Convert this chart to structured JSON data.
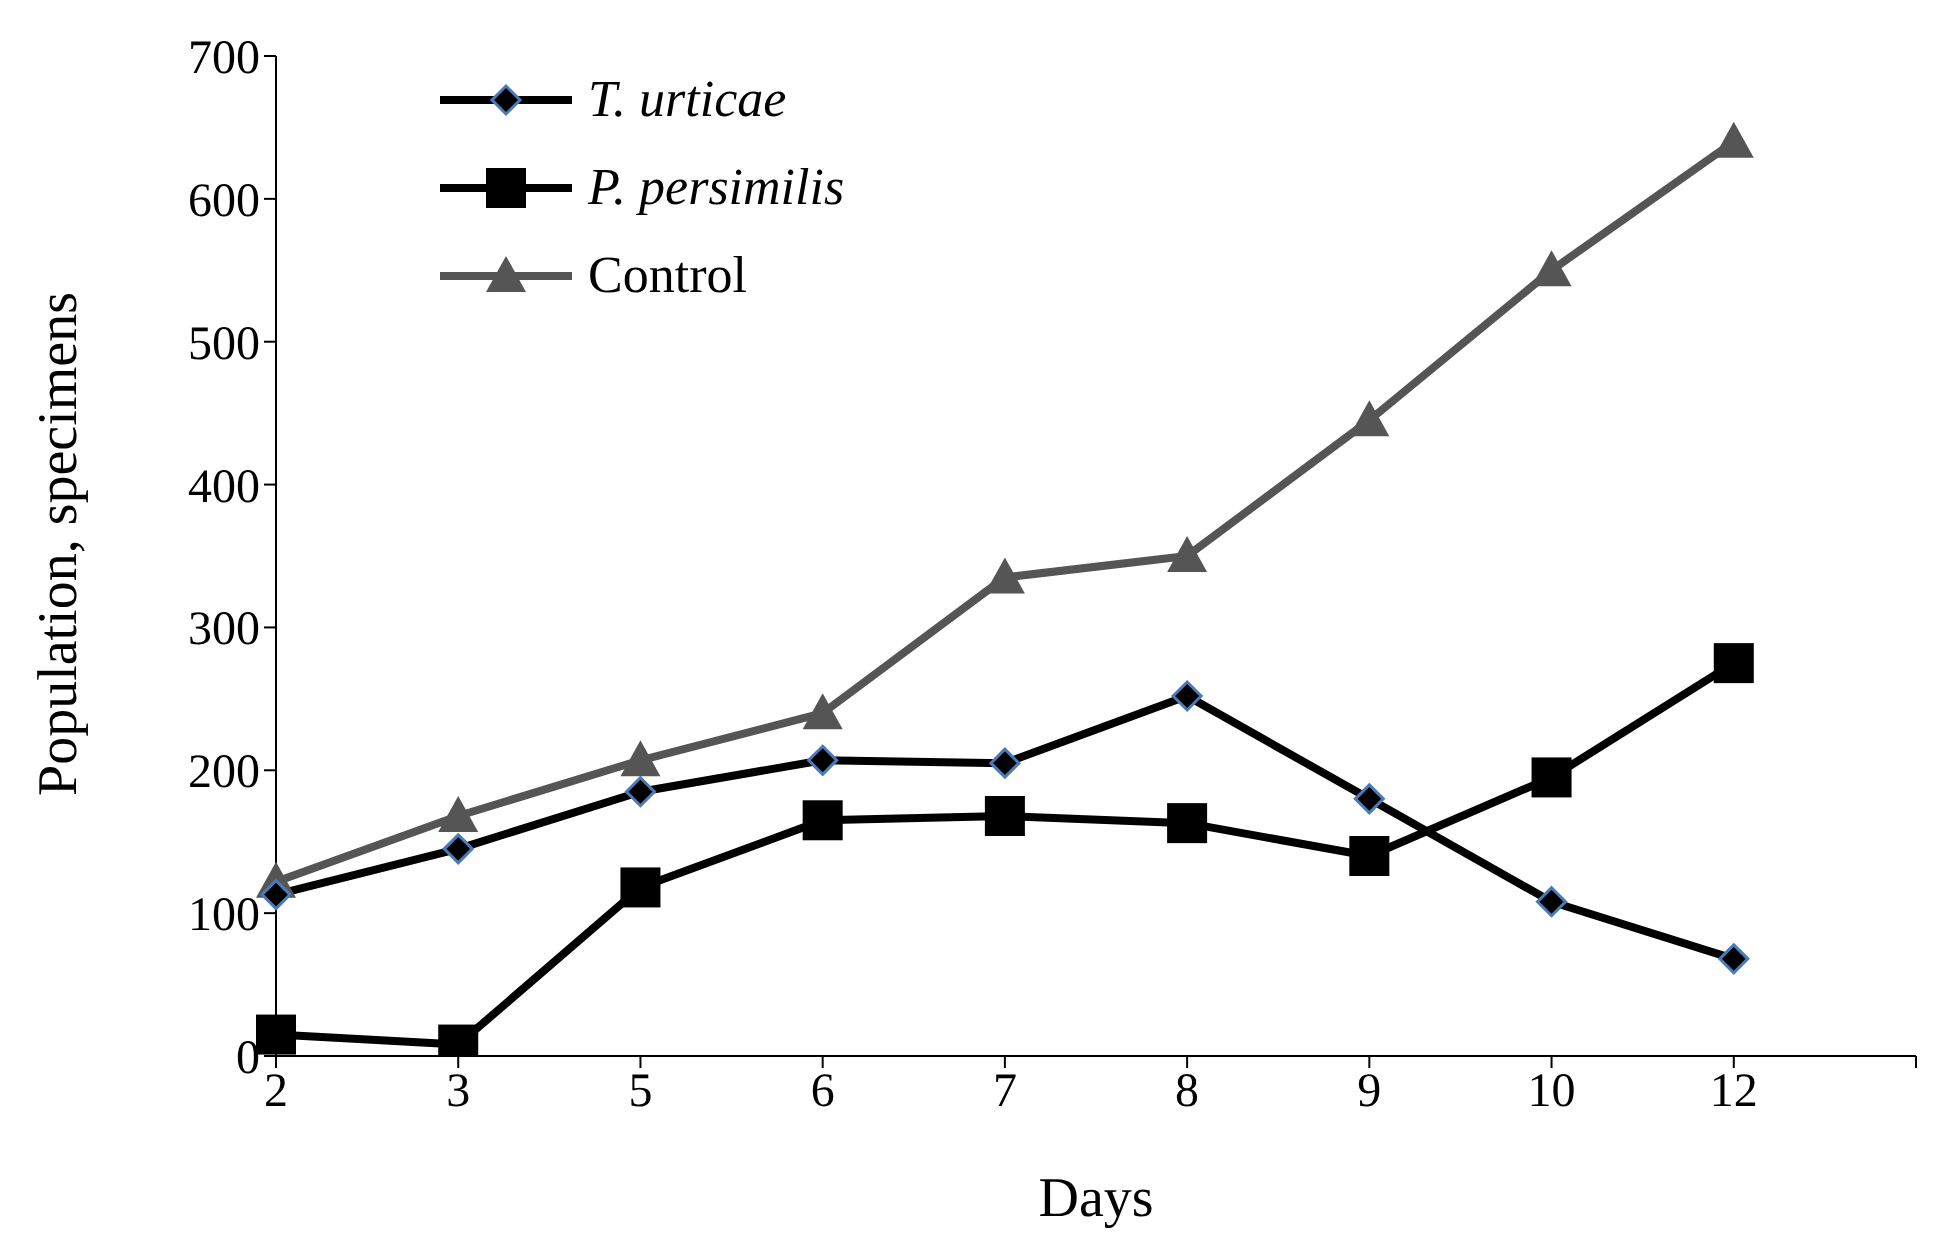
{
  "chart_data": {
    "type": "line",
    "xlabel": "Days",
    "ylabel": "Population, specimens",
    "categories": [
      "2",
      "3",
      "5",
      "6",
      "7",
      "8",
      "9",
      "10",
      "12",
      null
    ],
    "series": [
      {
        "name": "T. urticae",
        "color": "#000000",
        "marker": "diamond",
        "values": [
          113,
          145,
          185,
          207,
          205,
          252,
          180,
          108,
          68,
          null
        ]
      },
      {
        "name": "P. persimilis",
        "color": "#000000",
        "marker": "square",
        "values": [
          15,
          8,
          118,
          165,
          168,
          163,
          140,
          195,
          275,
          null
        ]
      },
      {
        "name": "Control",
        "color": "#555555",
        "marker": "triangle",
        "values": [
          122,
          168,
          207,
          240,
          335,
          350,
          445,
          550,
          640,
          null
        ]
      }
    ],
    "ylim": [
      0,
      700
    ],
    "yticks": [
      0,
      100,
      200,
      300,
      400,
      500,
      600,
      700
    ],
    "grid": false,
    "legend": "top left",
    "line_style": "solid"
  }
}
